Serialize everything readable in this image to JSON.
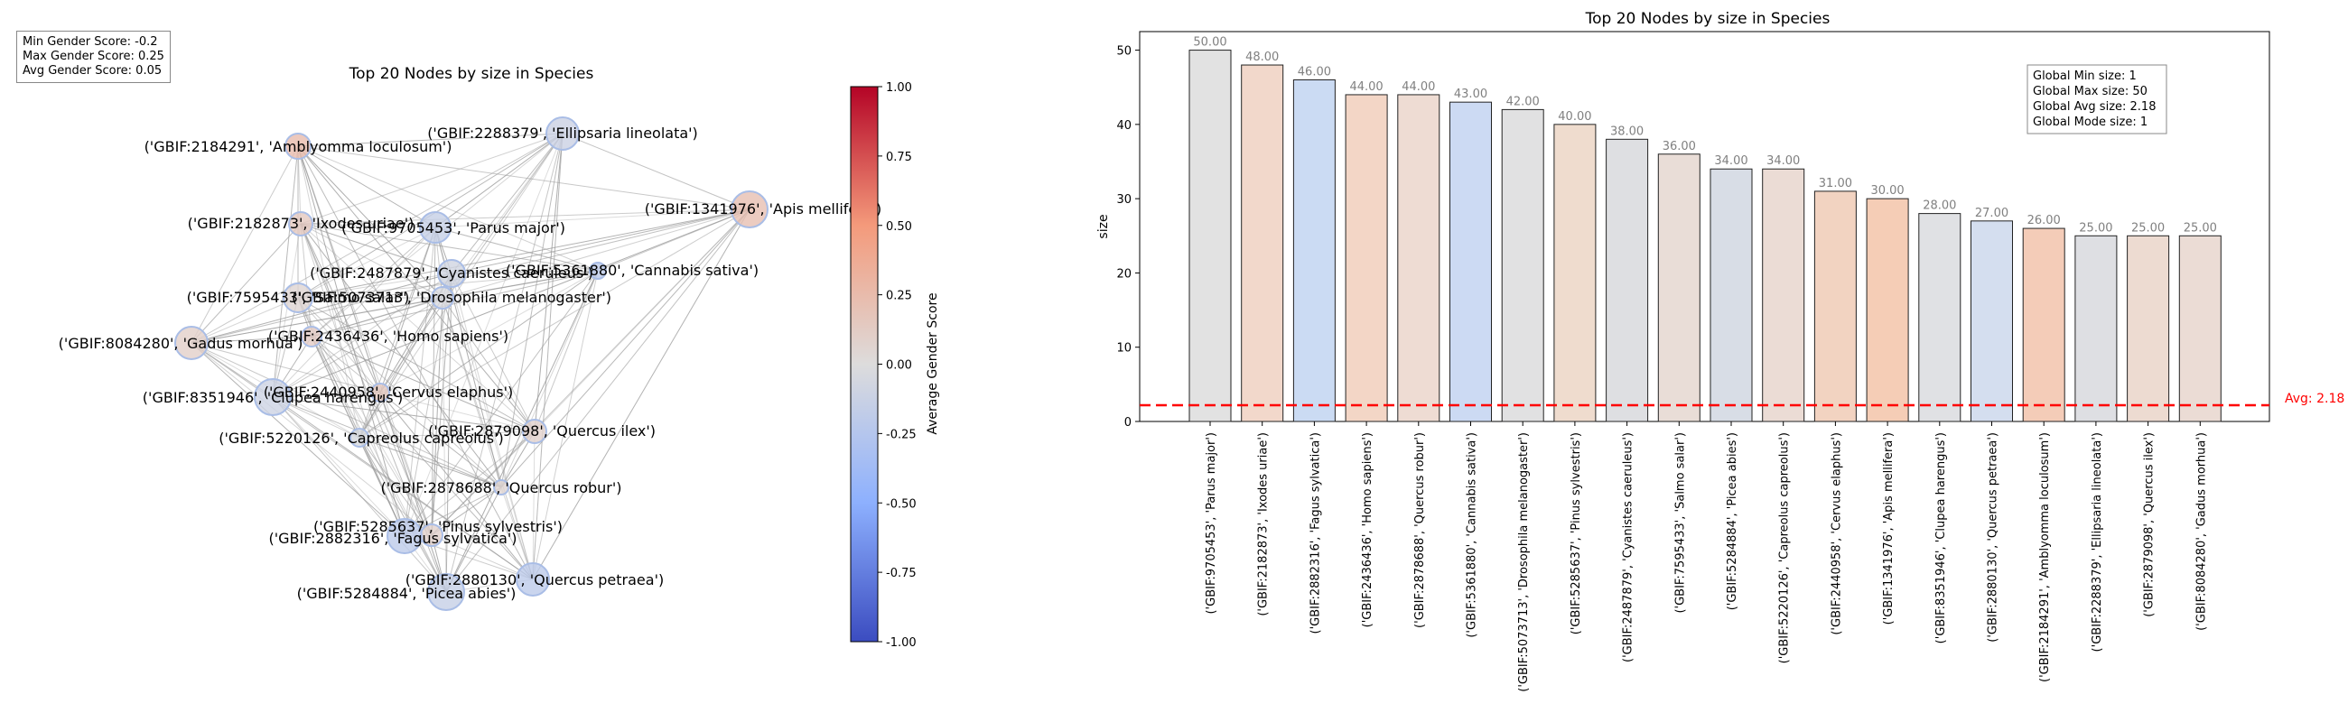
{
  "stats_box": {
    "min": "Min Gender Score: -0.2",
    "max": "Max Gender Score: 0.25",
    "avg": "Avg Gender Score: 0.05"
  },
  "network": {
    "title": "Top 20 Nodes by size in Species",
    "colorbar_label": "Average Gender Score",
    "colorbar_ticks": [
      "1.00",
      "0.75",
      "0.50",
      "0.25",
      "0.00",
      "-0.25",
      "-0.50",
      "-0.75",
      "-1.00"
    ]
  },
  "chart_data": [
    {
      "type": "network",
      "title": "Top 20 Nodes by size in Species",
      "nodes": [
        {
          "label": "('GBIF:2184291', 'Amblyomma loculosum')",
          "score": 0.25
        },
        {
          "label": "('GBIF:2288379', 'Ellipsaria lineolata')",
          "score": -0.12
        },
        {
          "label": "('GBIF:1341976', 'Apis mellifera')",
          "score": 0.22
        },
        {
          "label": "('GBIF:2182873', 'Ixodes uriae')",
          "score": 0.15
        },
        {
          "label": "('GBIF:9705453', 'Parus major')",
          "score": -0.15
        },
        {
          "label": "('GBIF:2487879', 'Cyanistes caeruleus')",
          "score": -0.08
        },
        {
          "label": "('GBIF:5361880', 'Cannabis sativa')",
          "score": -0.2
        },
        {
          "label": "('GBIF:5073713', 'Drosophila melanogaster')",
          "score": -0.03
        },
        {
          "label": "('GBIF:7595433', 'Salmo salar')",
          "score": 0.05
        },
        {
          "label": "('GBIF:8084280', 'Gadus morhua')",
          "score": 0.1
        },
        {
          "label": "('GBIF:2436436', 'Homo sapiens')",
          "score": 0.12
        },
        {
          "label": "('GBIF:8351946', 'Clupea harengus')",
          "score": -0.1
        },
        {
          "label": "('GBIF:2440958', 'Cervus elaphus')",
          "score": 0.15
        },
        {
          "label": "('GBIF:5220126', 'Capreolus capreolus')",
          "score": -0.05
        },
        {
          "label": "('GBIF:2879098', 'Quercus ilex')",
          "score": 0.08
        },
        {
          "label": "('GBIF:2878688', 'Quercus robur')",
          "score": 0.05
        },
        {
          "label": "('GBIF:5285637', 'Pinus sylvestris')",
          "score": 0.08
        },
        {
          "label": "('GBIF:2882316', 'Fagus sylvatica')",
          "score": -0.2
        },
        {
          "label": "('GBIF:2880130', 'Quercus petraea')",
          "score": -0.2
        },
        {
          "label": "('GBIF:5284884', 'Picea abies')",
          "score": -0.15
        }
      ],
      "color_range": [
        -1,
        1
      ]
    },
    {
      "type": "bar",
      "title": "Top 20 Nodes by size in Species",
      "xlabel": "",
      "ylabel": "size",
      "ylim": [
        0,
        52.5
      ],
      "yticks": [
        0,
        10,
        20,
        30,
        40,
        50
      ],
      "categories": [
        "('GBIF:9705453', 'Parus major')",
        "('GBIF:2182873', 'Ixodes uriae')",
        "('GBIF:2882316', 'Fagus sylvatica')",
        "('GBIF:2436436', 'Homo sapiens')",
        "('GBIF:2878688', 'Quercus robur')",
        "('GBIF:5361880', 'Cannabis sativa')",
        "('GBIF:5073713', 'Drosophila melanogaster')",
        "('GBIF:5285637', 'Pinus sylvestris')",
        "('GBIF:2487879', 'Cyanistes caeruleus')",
        "('GBIF:7595433', 'Salmo salar')",
        "('GBIF:5284884', 'Picea abies')",
        "('GBIF:5220126', 'Capreolus capreolus')",
        "('GBIF:2440958', 'Cervus elaphus')",
        "('GBIF:1341976', 'Apis mellifera')",
        "('GBIF:8351946', 'Clupea harengus')",
        "('GBIF:2880130', 'Quercus petraea')",
        "('GBIF:2184291', 'Amblyomma loculosum')",
        "('GBIF:2288379', 'Ellipsaria lineolata')",
        "('GBIF:2879098', 'Quercus ilex')",
        "('GBIF:8084280', 'Gadus morhua')"
      ],
      "values": [
        50,
        48,
        46,
        44,
        44,
        43,
        42,
        40,
        38,
        36,
        34,
        34,
        31,
        30,
        28,
        27,
        26,
        25,
        25,
        25
      ],
      "value_labels": [
        "50.00",
        "48.00",
        "46.00",
        "44.00",
        "44.00",
        "43.00",
        "42.00",
        "40.00",
        "38.00",
        "36.00",
        "34.00",
        "34.00",
        "31.00",
        "30.00",
        "28.00",
        "27.00",
        "26.00",
        "25.00",
        "25.00",
        "25.00"
      ],
      "bar_colors": [
        "#e2e2e2",
        "#f2d8cb",
        "#cbdbf3",
        "#f3d6c6",
        "#eedcd3",
        "#ccdaf3",
        "#e1e1e2",
        "#efdcce",
        "#dedfe2",
        "#e9ddd7",
        "#d8dde6",
        "#ebdcd5",
        "#f2d3c1",
        "#f5cdb6",
        "#e0e1e4",
        "#d4deef",
        "#f4ccb8",
        "#dedfe3",
        "#eddbd1",
        "#ebdcd5"
      ],
      "avg_line": {
        "value": 2.18,
        "label": "Avg: 2.18",
        "color": "#ff0000"
      },
      "legend_box": {
        "position": "top-right",
        "lines": [
          "Global Min size: 1",
          "Global Max size: 50",
          "Global Avg size: 2.18",
          "Global Mode size: 1"
        ]
      }
    }
  ]
}
